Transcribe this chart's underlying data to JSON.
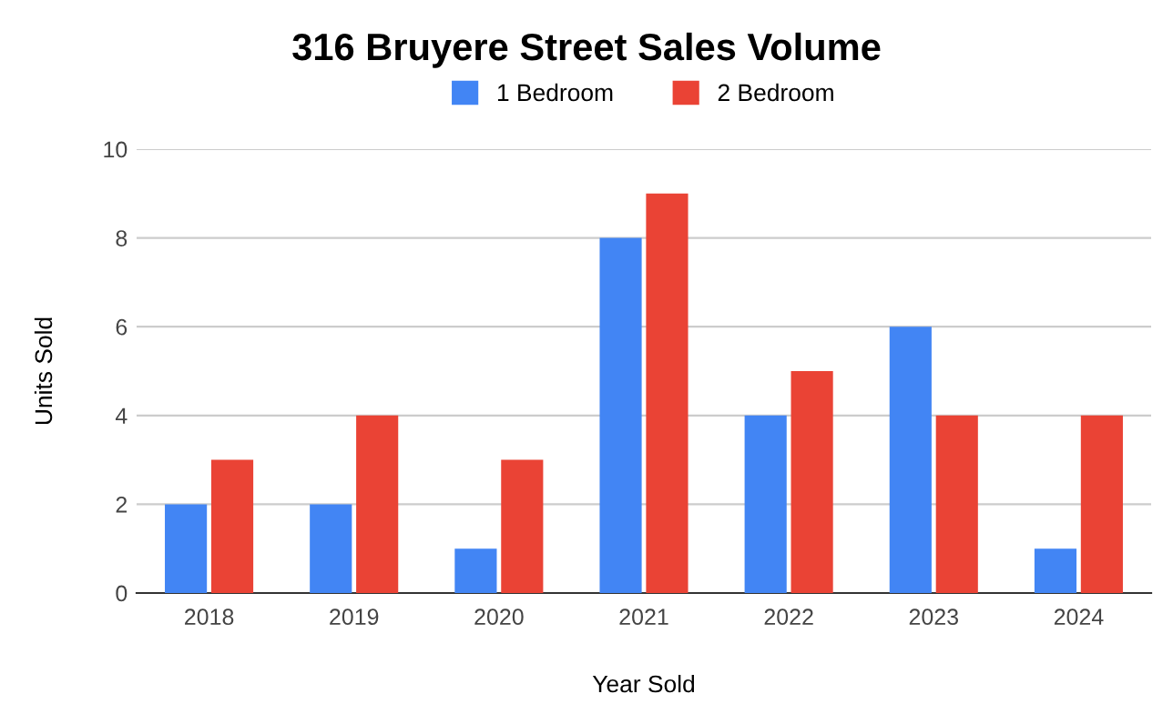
{
  "chart_data": {
    "type": "bar",
    "title": "316 Bruyere Street Sales Volume",
    "xlabel": "Year Sold",
    "ylabel": "Units Sold",
    "categories": [
      "2018",
      "2019",
      "2020",
      "2021",
      "2022",
      "2023",
      "2024"
    ],
    "series": [
      {
        "name": "1 Bedroom",
        "color": "#4285f4",
        "values": [
          2,
          2,
          1,
          8,
          4,
          6,
          1
        ]
      },
      {
        "name": "2 Bedroom",
        "color": "#ea4335",
        "values": [
          3,
          4,
          3,
          9,
          5,
          4,
          4
        ]
      }
    ],
    "ylim": [
      0,
      10
    ],
    "yticks": [
      0,
      2,
      4,
      6,
      8,
      10
    ],
    "grid": "y",
    "legend": "top"
  }
}
